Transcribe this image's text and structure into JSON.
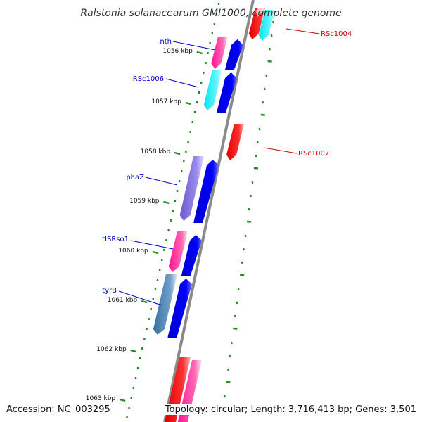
{
  "title": "Ralstonia solanacearum GMI1000, complete genome",
  "ticks": [
    {
      "label": "1056 kbp"
    },
    {
      "label": "1057 kbp"
    },
    {
      "label": "1058 kbp"
    },
    {
      "label": "1059 kbp"
    },
    {
      "label": "1060 kbp"
    },
    {
      "label": "1061 kbp"
    },
    {
      "label": "1062 kbp"
    },
    {
      "label": "1063 kbp"
    }
  ],
  "genes": [
    {
      "label": "nth",
      "color": "#0000cc"
    },
    {
      "label": "RSc1006",
      "color": "#0000cc"
    },
    {
      "label": "phaZ",
      "color": "#0000cc"
    },
    {
      "label": "tISRso1",
      "color": "#0000cc"
    },
    {
      "label": "tyrB",
      "color": "#0000cc"
    },
    {
      "label": "RSc1004",
      "color": "#cc0000"
    },
    {
      "label": "RSc1007",
      "color": "#cc0000"
    }
  ],
  "colors": {
    "forward_cds": "#0000ee",
    "reverse_cds": "#ee0000",
    "gene_pink": "#ff1493",
    "gene_cyan": "#00e5ee",
    "gene_purple": "#7b68ee",
    "gene_steelblue": "#4682b4",
    "ruler_dots": "#228b22",
    "backbone": "#8a8a8a"
  },
  "footer": {
    "accession": "Accession: NC_003295",
    "summary": "Topology: circular; Length: 3,716,413 bp; Genes: 3,501"
  }
}
